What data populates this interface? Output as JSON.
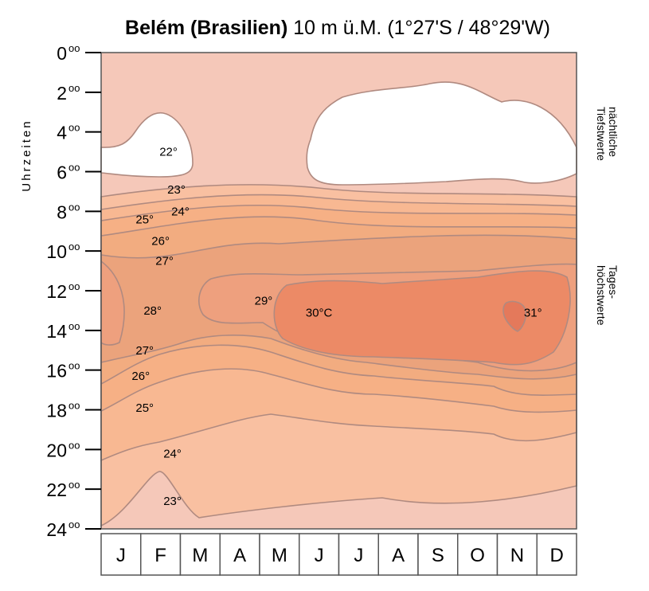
{
  "chart_data": {
    "type": "heatmap",
    "title": "Belém (Brasilien)",
    "subtitle": "10 m ü.M. (1°27'S / 48°29'W)",
    "ylabel": "Uhrzeiten",
    "y_ticks": [
      {
        "hour": 0,
        "label": "0",
        "sup": "oo"
      },
      {
        "hour": 2,
        "label": "2",
        "sup": "oo"
      },
      {
        "hour": 4,
        "label": "4",
        "sup": "oo"
      },
      {
        "hour": 6,
        "label": "6",
        "sup": "oo"
      },
      {
        "hour": 8,
        "label": "8",
        "sup": "oo"
      },
      {
        "hour": 10,
        "label": "10",
        "sup": "oo"
      },
      {
        "hour": 12,
        "label": "12",
        "sup": "oo"
      },
      {
        "hour": 14,
        "label": "14",
        "sup": "oo"
      },
      {
        "hour": 16,
        "label": "16",
        "sup": "oo"
      },
      {
        "hour": 18,
        "label": "18",
        "sup": "oo"
      },
      {
        "hour": 20,
        "label": "20",
        "sup": "oo"
      },
      {
        "hour": 22,
        "label": "22",
        "sup": "oo"
      },
      {
        "hour": 24,
        "label": "24",
        "sup": "oo"
      }
    ],
    "months": [
      "J",
      "F",
      "M",
      "A",
      "M",
      "J",
      "J",
      "A",
      "S",
      "O",
      "N",
      "D"
    ],
    "ylim": [
      0,
      24
    ],
    "right_labels": {
      "night": [
        "nächtliche",
        "Tiefstwerte"
      ],
      "day": [
        "Tages-",
        "höchstwerte"
      ]
    },
    "isotherm_labels": [
      {
        "text": "22°",
        "month": 2.2,
        "hour": 5.0
      },
      {
        "text": "23°",
        "month": 2.4,
        "hour": 6.9
      },
      {
        "text": "24°",
        "month": 2.5,
        "hour": 8.0
      },
      {
        "text": "25°",
        "month": 1.6,
        "hour": 8.4
      },
      {
        "text": "26°",
        "month": 2.0,
        "hour": 9.5
      },
      {
        "text": "27°",
        "month": 2.1,
        "hour": 10.5
      },
      {
        "text": "28°",
        "month": 1.8,
        "hour": 13.0
      },
      {
        "text": "29°",
        "month": 4.6,
        "hour": 12.5
      },
      {
        "text": "30°C",
        "month": 6.0,
        "hour": 13.1
      },
      {
        "text": "31°",
        "month": 11.4,
        "hour": 13.1
      },
      {
        "text": "27°",
        "month": 1.6,
        "hour": 15.0
      },
      {
        "text": "26°",
        "month": 1.5,
        "hour": 16.3
      },
      {
        "text": "25°",
        "month": 1.6,
        "hour": 17.9
      },
      {
        "text": "24°",
        "month": 2.3,
        "hour": 20.2
      },
      {
        "text": "23°",
        "month": 2.3,
        "hour": 22.6
      }
    ],
    "temperature_colors": {
      "22": "#ffffff",
      "23": "#f6cbbc",
      "24": "#f9c0a1",
      "25": "#f8b892",
      "26": "#f6b085",
      "27": "#f2ac80",
      "28": "#eba37c",
      "29": "#eea07e",
      "30": "#ec8a66",
      "31": "#e4795b"
    },
    "line_color": "#b08a80"
  }
}
